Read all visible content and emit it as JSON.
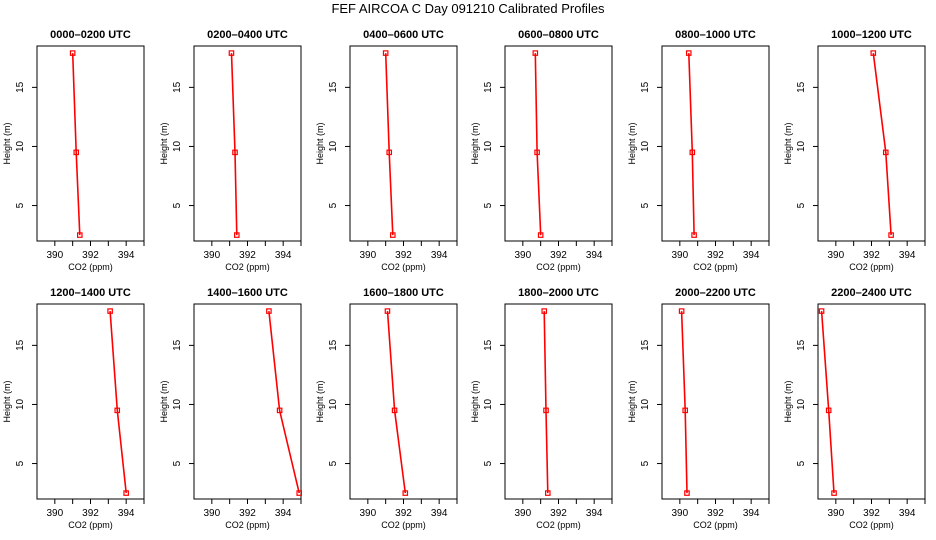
{
  "title": "FEF AIRCOA C  Day 091210  Calibrated Profiles",
  "colors": {
    "line": "#ff0000",
    "axis": "#000000"
  },
  "chart_data": [
    {
      "type": "line",
      "title": "0000–0200 UTC",
      "xlabel": "CO2 (ppm)",
      "ylabel": "Height (m)",
      "xticks": [
        "390",
        "392",
        "394"
      ],
      "yticks": [
        "5",
        "10",
        "15"
      ],
      "xlim": [
        389,
        395
      ],
      "ylim": [
        2,
        18.5
      ],
      "points": [
        {
          "x": 391.4,
          "y": 2.5
        },
        {
          "x": 391.2,
          "y": 9.5
        },
        {
          "x": 391.0,
          "y": 17.9
        }
      ]
    },
    {
      "type": "line",
      "title": "0200–0400 UTC",
      "xlabel": "CO2 (ppm)",
      "ylabel": "Height (m)",
      "xticks": [
        "390",
        "392",
        "394"
      ],
      "yticks": [
        "5",
        "10",
        "15"
      ],
      "xlim": [
        389,
        395
      ],
      "ylim": [
        2,
        18.5
      ],
      "points": [
        {
          "x": 391.4,
          "y": 2.5
        },
        {
          "x": 391.3,
          "y": 9.5
        },
        {
          "x": 391.1,
          "y": 17.9
        }
      ]
    },
    {
      "type": "line",
      "title": "0400–0600 UTC",
      "xlabel": "CO2 (ppm)",
      "ylabel": "Height (m)",
      "xticks": [
        "390",
        "392",
        "394"
      ],
      "yticks": [
        "5",
        "10",
        "15"
      ],
      "xlim": [
        389,
        395
      ],
      "ylim": [
        2,
        18.5
      ],
      "points": [
        {
          "x": 391.4,
          "y": 2.5
        },
        {
          "x": 391.2,
          "y": 9.5
        },
        {
          "x": 391.0,
          "y": 17.9
        }
      ]
    },
    {
      "type": "line",
      "title": "0600–0800 UTC",
      "xlabel": "CO2 (ppm)",
      "ylabel": "Height (m)",
      "xticks": [
        "390",
        "392",
        "394"
      ],
      "yticks": [
        "5",
        "10",
        "15"
      ],
      "xlim": [
        389,
        395
      ],
      "ylim": [
        2,
        18.5
      ],
      "points": [
        {
          "x": 391.0,
          "y": 2.5
        },
        {
          "x": 390.8,
          "y": 9.5
        },
        {
          "x": 390.7,
          "y": 17.9
        }
      ]
    },
    {
      "type": "line",
      "title": "0800–1000 UTC",
      "xlabel": "CO2 (ppm)",
      "ylabel": "Height (m)",
      "xticks": [
        "390",
        "392",
        "394"
      ],
      "yticks": [
        "5",
        "10",
        "15"
      ],
      "xlim": [
        389,
        395
      ],
      "ylim": [
        2,
        18.5
      ],
      "points": [
        {
          "x": 390.8,
          "y": 2.5
        },
        {
          "x": 390.7,
          "y": 9.5
        },
        {
          "x": 390.5,
          "y": 17.9
        }
      ]
    },
    {
      "type": "line",
      "title": "1000–1200 UTC",
      "xlabel": "CO2 (ppm)",
      "ylabel": "Height (m)",
      "xticks": [
        "390",
        "392",
        "394"
      ],
      "yticks": [
        "5",
        "10",
        "15"
      ],
      "xlim": [
        389,
        395
      ],
      "ylim": [
        2,
        18.5
      ],
      "points": [
        {
          "x": 393.1,
          "y": 2.5
        },
        {
          "x": 392.8,
          "y": 9.5
        },
        {
          "x": 392.1,
          "y": 17.9
        }
      ]
    },
    {
      "type": "line",
      "title": "1200–1400 UTC",
      "xlabel": "CO2 (ppm)",
      "ylabel": "Height (m)",
      "xticks": [
        "390",
        "392",
        "394"
      ],
      "yticks": [
        "5",
        "10",
        "15"
      ],
      "xlim": [
        389,
        395
      ],
      "ylim": [
        2,
        18.5
      ],
      "points": [
        {
          "x": 394.0,
          "y": 2.5
        },
        {
          "x": 393.5,
          "y": 9.5
        },
        {
          "x": 393.1,
          "y": 17.9
        }
      ]
    },
    {
      "type": "line",
      "title": "1400–1600 UTC",
      "xlabel": "CO2 (ppm)",
      "ylabel": "Height (m)",
      "xticks": [
        "390",
        "392",
        "394"
      ],
      "yticks": [
        "5",
        "10",
        "15"
      ],
      "xlim": [
        389,
        395
      ],
      "ylim": [
        2,
        18.5
      ],
      "points": [
        {
          "x": 394.9,
          "y": 2.5
        },
        {
          "x": 393.8,
          "y": 9.5
        },
        {
          "x": 393.2,
          "y": 17.9
        }
      ]
    },
    {
      "type": "line",
      "title": "1600–1800 UTC",
      "xlabel": "CO2 (ppm)",
      "ylabel": "Height (m)",
      "xticks": [
        "390",
        "392",
        "394"
      ],
      "yticks": [
        "5",
        "10",
        "15"
      ],
      "xlim": [
        389,
        395
      ],
      "ylim": [
        2,
        18.5
      ],
      "points": [
        {
          "x": 392.1,
          "y": 2.5
        },
        {
          "x": 391.5,
          "y": 9.5
        },
        {
          "x": 391.1,
          "y": 17.9
        }
      ]
    },
    {
      "type": "line",
      "title": "1800–2000 UTC",
      "xlabel": "CO2 (ppm)",
      "ylabel": "Height (m)",
      "xticks": [
        "390",
        "392",
        "394"
      ],
      "yticks": [
        "5",
        "10",
        "15"
      ],
      "xlim": [
        389,
        395
      ],
      "ylim": [
        2,
        18.5
      ],
      "points": [
        {
          "x": 391.4,
          "y": 2.5
        },
        {
          "x": 391.3,
          "y": 9.5
        },
        {
          "x": 391.2,
          "y": 17.9
        }
      ]
    },
    {
      "type": "line",
      "title": "2000–2200 UTC",
      "xlabel": "CO2 (ppm)",
      "ylabel": "Height (m)",
      "xticks": [
        "390",
        "392",
        "394"
      ],
      "yticks": [
        "5",
        "10",
        "15"
      ],
      "xlim": [
        389,
        395
      ],
      "ylim": [
        2,
        18.5
      ],
      "points": [
        {
          "x": 390.4,
          "y": 2.5
        },
        {
          "x": 390.3,
          "y": 9.5
        },
        {
          "x": 390.1,
          "y": 17.9
        }
      ]
    },
    {
      "type": "line",
      "title": "2200–2400 UTC",
      "xlabel": "CO2 (ppm)",
      "ylabel": "Height (m)",
      "xticks": [
        "390",
        "392",
        "394"
      ],
      "yticks": [
        "5",
        "10",
        "15"
      ],
      "xlim": [
        389,
        395
      ],
      "ylim": [
        2,
        18.5
      ],
      "points": [
        {
          "x": 389.9,
          "y": 2.5
        },
        {
          "x": 389.6,
          "y": 9.5
        },
        {
          "x": 389.2,
          "y": 17.9
        }
      ]
    }
  ]
}
